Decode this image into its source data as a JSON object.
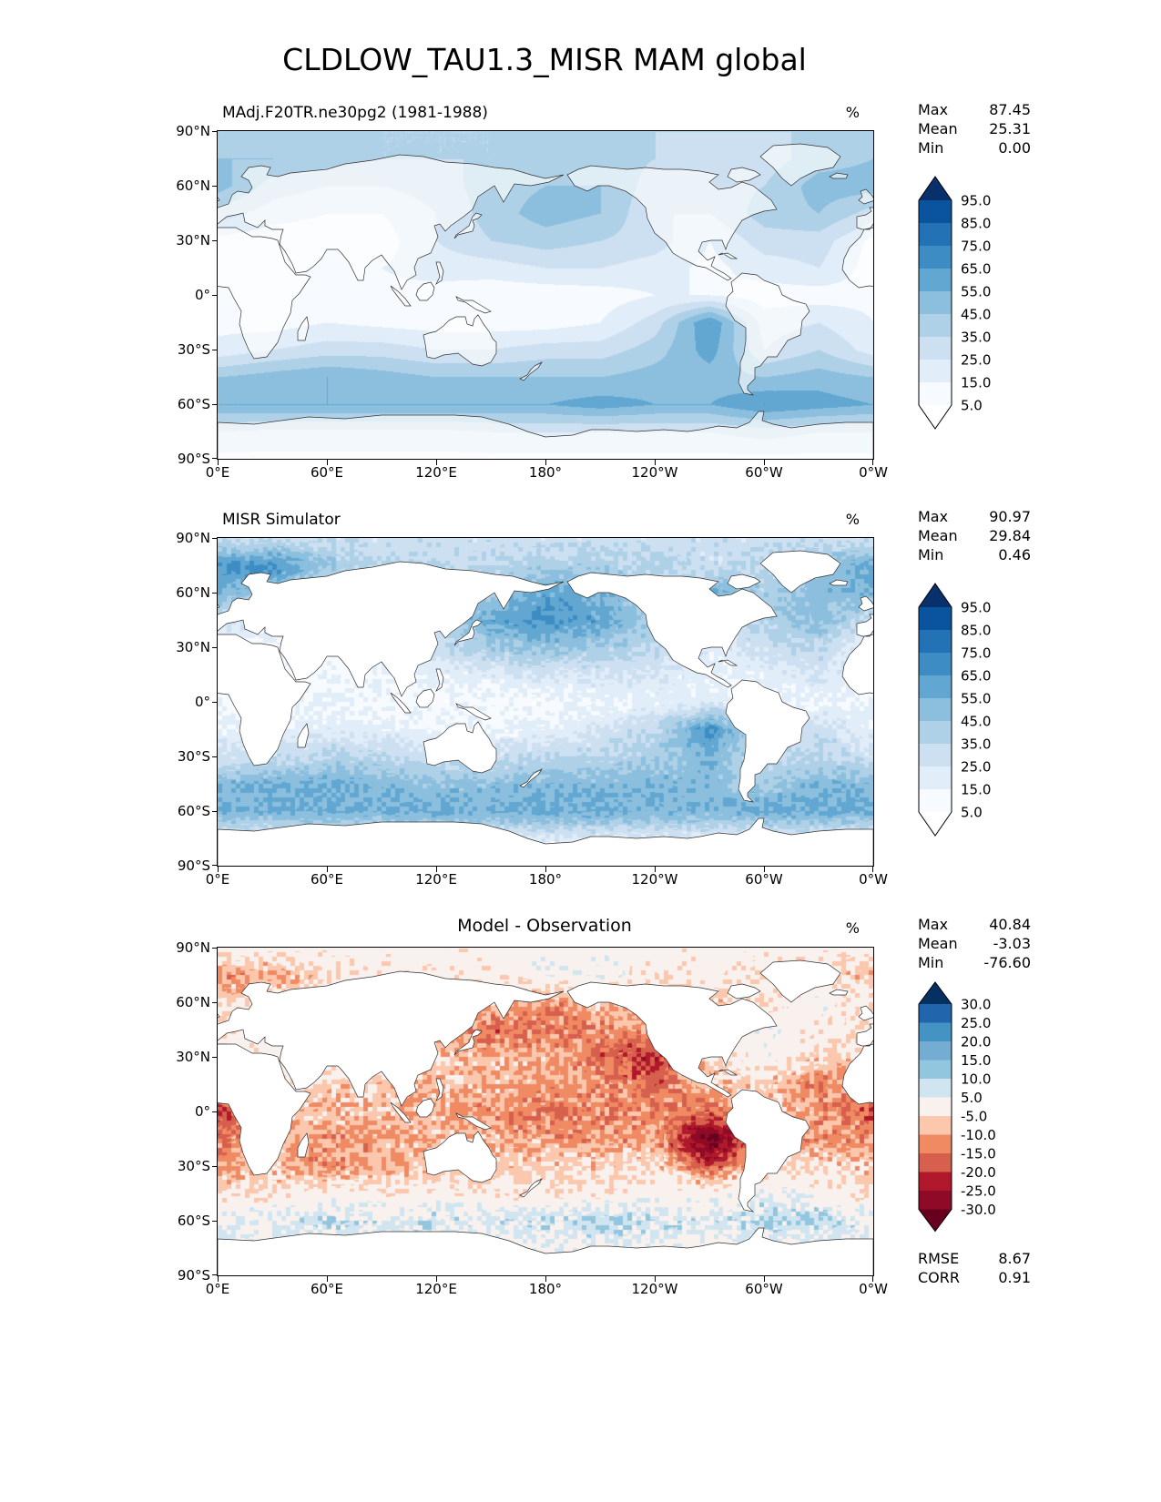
{
  "title": "CLDLOW_TAU1.3_MISR MAM global",
  "axes": {
    "y_ticks": [
      "90°N",
      "60°N",
      "30°N",
      "0°",
      "30°S",
      "60°S",
      "90°S"
    ],
    "x_ticks": [
      "0°E",
      "60°E",
      "120°E",
      "180°",
      "120°W",
      "60°W",
      "0°W"
    ]
  },
  "chart_data": {
    "type": "heatmap",
    "projection": "equirectangular global map, lon 0E to 0W (180 center), lat 90N to 90S",
    "grid": {
      "lons": [
        0,
        30,
        60,
        90,
        120,
        150,
        180,
        210,
        240,
        270,
        300,
        330,
        360
      ],
      "lats": [
        90,
        75,
        60,
        45,
        30,
        15,
        0,
        -15,
        -30,
        -45,
        -60,
        -75,
        -90
      ]
    },
    "panels": [
      {
        "title": "MAdj.F20TR.ne30pg2 (1981-1988)",
        "units": "%",
        "stats": [
          {
            "label": "Max",
            "value": "87.45"
          },
          {
            "label": "Mean",
            "value": "25.31"
          },
          {
            "label": "Min",
            "value": "0.00"
          }
        ],
        "colorbar": {
          "levels": [
            5,
            15,
            25,
            35,
            45,
            55,
            65,
            75,
            85,
            95
          ],
          "tick_labels": [
            "95.0",
            "85.0",
            "75.0",
            "65.0",
            "55.0",
            "45.0",
            "35.0",
            "25.0",
            "15.0",
            "5.0"
          ],
          "colors": [
            "#ffffff",
            "#f7fbff",
            "#e1edf8",
            "#cde0f1",
            "#afd1e7",
            "#8bbfdd",
            "#61a7d2",
            "#3d8dc4",
            "#2272b5",
            "#0a549e",
            "#08306b"
          ]
        },
        "values": [
          [
            35,
            35,
            35,
            35,
            35,
            35,
            35,
            35,
            35,
            35,
            35,
            35,
            35
          ],
          [
            45,
            45,
            40,
            35,
            35,
            35,
            40,
            40,
            35,
            30,
            30,
            40,
            45
          ],
          [
            50,
            30,
            25,
            25,
            30,
            40,
            45,
            45,
            30,
            30,
            35,
            50,
            50
          ],
          [
            30,
            20,
            15,
            15,
            25,
            40,
            50,
            45,
            25,
            25,
            40,
            45,
            30
          ],
          [
            12,
            8,
            8,
            10,
            25,
            35,
            40,
            35,
            30,
            15,
            30,
            30,
            12
          ],
          [
            8,
            5,
            8,
            15,
            20,
            20,
            25,
            25,
            20,
            12,
            20,
            25,
            10
          ],
          [
            12,
            10,
            10,
            12,
            10,
            8,
            8,
            10,
            15,
            15,
            10,
            10,
            12
          ],
          [
            12,
            10,
            15,
            12,
            10,
            10,
            10,
            15,
            30,
            65,
            20,
            25,
            15
          ],
          [
            18,
            25,
            30,
            30,
            25,
            25,
            30,
            30,
            40,
            60,
            25,
            35,
            20
          ],
          [
            45,
            50,
            55,
            50,
            45,
            45,
            45,
            45,
            50,
            50,
            45,
            50,
            45
          ],
          [
            55,
            55,
            55,
            55,
            55,
            55,
            55,
            60,
            55,
            55,
            65,
            60,
            55
          ],
          [
            25,
            22,
            22,
            22,
            22,
            25,
            25,
            25,
            25,
            25,
            30,
            25,
            25
          ],
          [
            12,
            12,
            12,
            12,
            12,
            12,
            12,
            12,
            12,
            12,
            12,
            12,
            12
          ]
        ]
      },
      {
        "title": "MISR Simulator",
        "units": "%",
        "stats": [
          {
            "label": "Max",
            "value": "90.97"
          },
          {
            "label": "Mean",
            "value": "29.84"
          },
          {
            "label": "Min",
            "value": "0.46"
          }
        ],
        "colorbar": {
          "levels": [
            5,
            15,
            25,
            35,
            45,
            55,
            65,
            75,
            85,
            95
          ],
          "tick_labels": [
            "95.0",
            "85.0",
            "75.0",
            "65.0",
            "55.0",
            "45.0",
            "35.0",
            "25.0",
            "15.0",
            "5.0"
          ],
          "colors": [
            "#ffffff",
            "#f7fbff",
            "#e1edf8",
            "#cde0f1",
            "#afd1e7",
            "#8bbfdd",
            "#61a7d2",
            "#3d8dc4",
            "#2272b5",
            "#0a549e",
            "#08306b"
          ]
        },
        "values": [
          [
            30,
            30,
            30,
            30,
            30,
            30,
            30,
            30,
            30,
            30,
            30,
            30,
            30
          ],
          [
            65,
            70,
            45,
            35,
            35,
            35,
            40,
            40,
            35,
            30,
            35,
            45,
            60
          ],
          [
            55,
            45,
            25,
            25,
            30,
            45,
            60,
            55,
            35,
            55,
            40,
            50,
            55
          ],
          [
            28,
            20,
            15,
            15,
            35,
            60,
            68,
            60,
            40,
            25,
            40,
            48,
            30
          ],
          [
            14,
            10,
            10,
            12,
            30,
            42,
            48,
            42,
            35,
            20,
            30,
            35,
            15
          ],
          [
            10,
            8,
            12,
            15,
            18,
            20,
            25,
            25,
            25,
            15,
            20,
            25,
            12
          ],
          [
            14,
            12,
            15,
            12,
            10,
            10,
            10,
            12,
            18,
            22,
            12,
            15,
            14
          ],
          [
            18,
            15,
            20,
            18,
            15,
            15,
            18,
            25,
            35,
            70,
            25,
            30,
            18
          ],
          [
            28,
            30,
            38,
            35,
            30,
            30,
            35,
            35,
            42,
            55,
            30,
            38,
            28
          ],
          [
            52,
            55,
            55,
            52,
            48,
            50,
            52,
            52,
            52,
            50,
            45,
            52,
            52
          ],
          [
            55,
            55,
            58,
            55,
            58,
            55,
            58,
            58,
            55,
            52,
            58,
            58,
            55
          ],
          [
            22,
            20,
            20,
            20,
            20,
            22,
            22,
            22,
            22,
            22,
            25,
            22,
            22
          ],
          [
            10,
            10,
            10,
            10,
            10,
            10,
            10,
            10,
            10,
            10,
            10,
            10,
            10
          ]
        ]
      },
      {
        "title": "Model - Observation",
        "units": "%",
        "stats": [
          {
            "label": "Max",
            "value": "40.84"
          },
          {
            "label": "Mean",
            "value": "-3.03"
          },
          {
            "label": "Min",
            "value": "-76.60"
          }
        ],
        "extra_stats": [
          {
            "label": "RMSE",
            "value": "8.67"
          },
          {
            "label": "CORR",
            "value": "0.91"
          }
        ],
        "colorbar": {
          "levels": [
            -30,
            -25,
            -20,
            -15,
            -10,
            -5,
            5,
            10,
            15,
            20,
            25,
            30
          ],
          "tick_labels": [
            "30.0",
            "25.0",
            "20.0",
            "15.0",
            "10.0",
            "5.0",
            "-5.0",
            "-10.0",
            "-15.0",
            "-20.0",
            "-25.0",
            "-30.0"
          ],
          "colors": [
            "#67001f",
            "#8e0a26",
            "#b2182b",
            "#d6604d",
            "#ef8a62",
            "#fbc7ad",
            "#f9f1ed",
            "#d1e5f0",
            "#92c5de",
            "#74add1",
            "#4393c3",
            "#2166ac",
            "#053061"
          ]
        },
        "values": [
          [
            0,
            0,
            0,
            0,
            0,
            0,
            0,
            0,
            0,
            0,
            0,
            0,
            0
          ],
          [
            -12,
            -10,
            -4,
            -2,
            -2,
            -2,
            2,
            2,
            -2,
            0,
            -4,
            -4,
            -8
          ],
          [
            -6,
            -4,
            -2,
            -2,
            -3,
            -7,
            -12,
            -8,
            -4,
            -8,
            -4,
            2,
            -6
          ],
          [
            -3,
            -2,
            -2,
            -3,
            -8,
            -16,
            -14,
            -12,
            -10,
            -3,
            2,
            -2,
            -3
          ],
          [
            -4,
            -2,
            -2,
            -4,
            -7,
            -9,
            -8,
            -16,
            -22,
            -6,
            2,
            -6,
            -5
          ],
          [
            -6,
            -3,
            -5,
            -8,
            -8,
            -8,
            -10,
            -12,
            -16,
            -8,
            -6,
            -14,
            -8
          ],
          [
            -22,
            -6,
            -8,
            -8,
            -9,
            -12,
            -15,
            -12,
            -12,
            -16,
            -8,
            -10,
            -18
          ],
          [
            -14,
            -10,
            -12,
            -10,
            -9,
            -9,
            -10,
            -12,
            -10,
            -35,
            -8,
            -12,
            -12
          ],
          [
            -10,
            -8,
            -12,
            -9,
            -6,
            -6,
            -6,
            -6,
            -4,
            -18,
            -6,
            -4,
            -8
          ],
          [
            -4,
            -3,
            0,
            -2,
            0,
            -2,
            -3,
            -3,
            0,
            0,
            4,
            0,
            -4
          ],
          [
            4,
            5,
            8,
            5,
            8,
            5,
            8,
            12,
            8,
            5,
            10,
            10,
            4
          ],
          [
            2,
            2,
            2,
            2,
            2,
            2,
            2,
            2,
            2,
            2,
            2,
            2,
            2
          ],
          [
            0,
            0,
            0,
            0,
            0,
            0,
            0,
            0,
            0,
            0,
            0,
            0,
            0
          ]
        ]
      }
    ]
  }
}
